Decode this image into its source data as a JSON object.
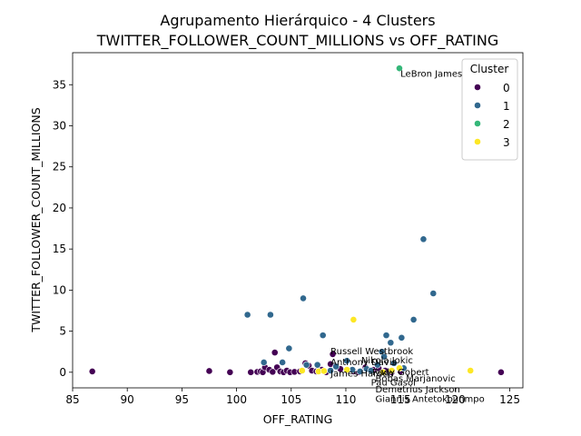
{
  "chart_data": {
    "type": "scatter",
    "title": "Agrupamento Hierárquico - 4 Clusters",
    "subtitle": "TWITTER_FOLLOWER_COUNT_MILLIONS vs OFF_RATING",
    "xlabel": "OFF_RATING",
    "ylabel": "TWITTER_FOLLOWER_COUNT_MILLIONS",
    "xlim": [
      85.0,
      126.2
    ],
    "ylim": [
      -1.9,
      38.9
    ],
    "xticks": [
      85,
      90,
      95,
      100,
      105,
      110,
      115,
      120,
      125
    ],
    "yticks": [
      0,
      5,
      10,
      15,
      20,
      25,
      30,
      35
    ],
    "grid": false,
    "legend": {
      "title": "Cluster",
      "position": "top-right",
      "entries": [
        {
          "label": "0",
          "color": "#440154"
        },
        {
          "label": "1",
          "color": "#31688e"
        },
        {
          "label": "2",
          "color": "#35b779"
        },
        {
          "label": "3",
          "color": "#fde725"
        }
      ]
    },
    "series": [
      {
        "name": "0",
        "color": "#440154",
        "points": [
          [
            86.8,
            0.1
          ],
          [
            97.5,
            0.15
          ],
          [
            99.4,
            0.0
          ],
          [
            101.3,
            0.0
          ],
          [
            101.9,
            0.05
          ],
          [
            102.2,
            0.1
          ],
          [
            102.4,
            0.0
          ],
          [
            102.6,
            0.6
          ],
          [
            103.0,
            0.3
          ],
          [
            103.3,
            0.05
          ],
          [
            103.5,
            2.4
          ],
          [
            103.7,
            0.6
          ],
          [
            104.0,
            0.1
          ],
          [
            104.3,
            0.0
          ],
          [
            104.6,
            0.2
          ],
          [
            104.9,
            0.0
          ],
          [
            105.3,
            0.05
          ],
          [
            105.8,
            0.1
          ],
          [
            106.3,
            1.1
          ],
          [
            106.6,
            0.8
          ],
          [
            106.9,
            0.2
          ],
          [
            107.3,
            0.1
          ],
          [
            107.8,
            0.3
          ],
          [
            108.2,
            0.0
          ],
          [
            108.6,
            1.0
          ],
          [
            108.8,
            2.2
          ],
          [
            109.5,
            0.4
          ],
          [
            110.1,
            0.2
          ],
          [
            110.7,
            0.1
          ],
          [
            111.2,
            0.0
          ],
          [
            111.8,
            0.6
          ],
          [
            112.5,
            0.3
          ],
          [
            113.0,
            0.5
          ],
          [
            113.6,
            0.2
          ],
          [
            114.2,
            0.0
          ],
          [
            115.0,
            0.1
          ],
          [
            124.2,
            0.0
          ]
        ]
      },
      {
        "name": "1",
        "color": "#31688e",
        "points": [
          [
            101.0,
            7.0
          ],
          [
            102.5,
            1.2
          ],
          [
            103.1,
            7.0
          ],
          [
            104.2,
            1.2
          ],
          [
            104.8,
            2.9
          ],
          [
            106.1,
            9.0
          ],
          [
            106.4,
            0.9
          ],
          [
            107.4,
            0.9
          ],
          [
            107.9,
            4.5
          ],
          [
            108.6,
            0.2
          ],
          [
            109.1,
            0.7
          ],
          [
            110.1,
            1.4
          ],
          [
            110.6,
            0.3
          ],
          [
            111.3,
            0.1
          ],
          [
            111.9,
            0.4
          ],
          [
            112.3,
            0.2
          ],
          [
            112.9,
            0.9
          ],
          [
            113.3,
            2.5
          ],
          [
            113.5,
            1.9
          ],
          [
            113.7,
            4.5
          ],
          [
            114.1,
            3.6
          ],
          [
            114.4,
            1.1
          ],
          [
            115.1,
            4.2
          ],
          [
            115.3,
            0.5
          ],
          [
            116.2,
            6.4
          ],
          [
            117.1,
            16.2
          ],
          [
            118.0,
            9.6
          ]
        ]
      },
      {
        "name": "2",
        "color": "#35b779",
        "points": [
          [
            114.9,
            37.0
          ]
        ]
      },
      {
        "name": "3",
        "color": "#fde725",
        "points": [
          [
            106.0,
            0.2
          ],
          [
            107.5,
            0.1
          ],
          [
            108.0,
            0.15
          ],
          [
            110.1,
            0.3
          ],
          [
            110.7,
            6.4
          ],
          [
            113.4,
            0.0
          ],
          [
            114.2,
            0.2
          ],
          [
            114.9,
            0.5
          ],
          [
            121.4,
            0.2
          ]
        ]
      }
    ],
    "annotations": [
      {
        "text": "LeBron James",
        "x": 115.0,
        "y": 36.3
      },
      {
        "text": "Russell Westbrook",
        "x": 108.6,
        "y": 2.5
      },
      {
        "text": "Nikola Jokic",
        "x": 111.4,
        "y": 1.4
      },
      {
        "text": "Anthony Davis",
        "x": 108.6,
        "y": 1.2
      },
      {
        "text": "Rudy Gobert",
        "x": 112.4,
        "y": 0.0
      },
      {
        "text": "James Harden",
        "x": 108.6,
        "y": -0.2
      },
      {
        "text": "Bobas Marjanovic",
        "x": 112.7,
        "y": -0.8
      },
      {
        "text": "Pau Gasol",
        "x": 112.3,
        "y": -1.3
      },
      {
        "text": "Demetrius Jackson",
        "x": 112.7,
        "y": -2.1
      },
      {
        "text": "Giannis Antetokounmpo",
        "x": 112.7,
        "y": -3.3
      }
    ]
  }
}
